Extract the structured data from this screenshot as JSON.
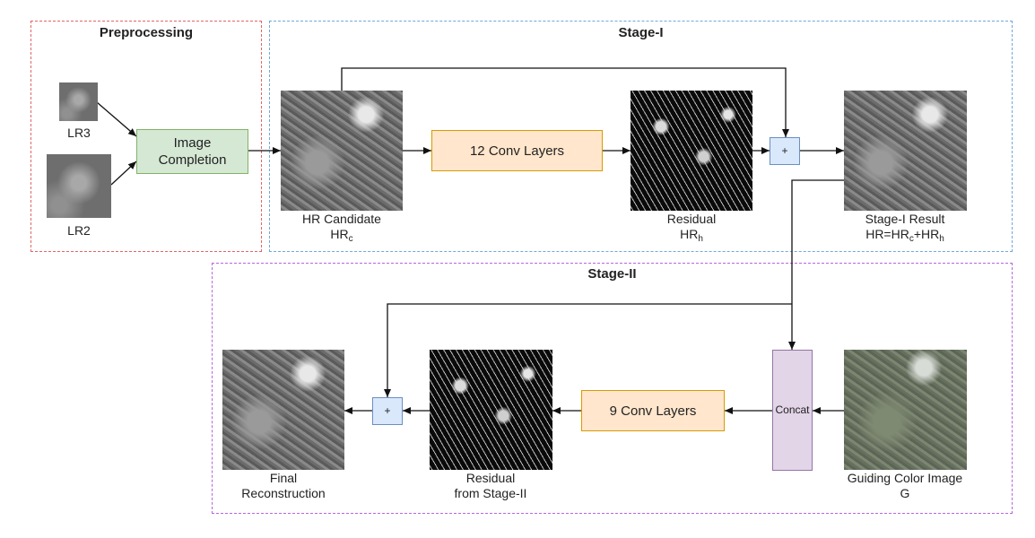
{
  "panels": {
    "preprocessing": {
      "title": "Preprocessing",
      "border_color": "#e06666"
    },
    "stage1": {
      "title": "Stage-I",
      "border_color": "#6fa8dc"
    },
    "stage2": {
      "title": "Stage-II",
      "border_color": "#b566e0"
    }
  },
  "preprocessing": {
    "lr3_label": "LR3",
    "lr2_label": "LR2",
    "completion_line1": "Image",
    "completion_line2": "Completion"
  },
  "stage1": {
    "candidate_line1": "HR Candidate",
    "candidate_line2_main": "HR",
    "candidate_line2_sub": "c",
    "conv_label": "12 Conv Layers",
    "residual_line1": "Residual",
    "residual_line2_main": "HR",
    "residual_line2_sub": "h",
    "plus": "+",
    "result_line1": "Stage-I Result",
    "result_f1": "HR=HR",
    "result_s1": "c",
    "result_f2": "+HR",
    "result_s2": "h"
  },
  "stage2": {
    "concat_label": "Concat",
    "conv_label": "9 Conv Layers",
    "plus": "+",
    "guide_line1": "Guiding Color Image",
    "guide_line2": "G",
    "residual_line1": "Residual",
    "residual_line2": "from Stage-II",
    "final_line1": "Final",
    "final_line2": "Reconstruction"
  }
}
